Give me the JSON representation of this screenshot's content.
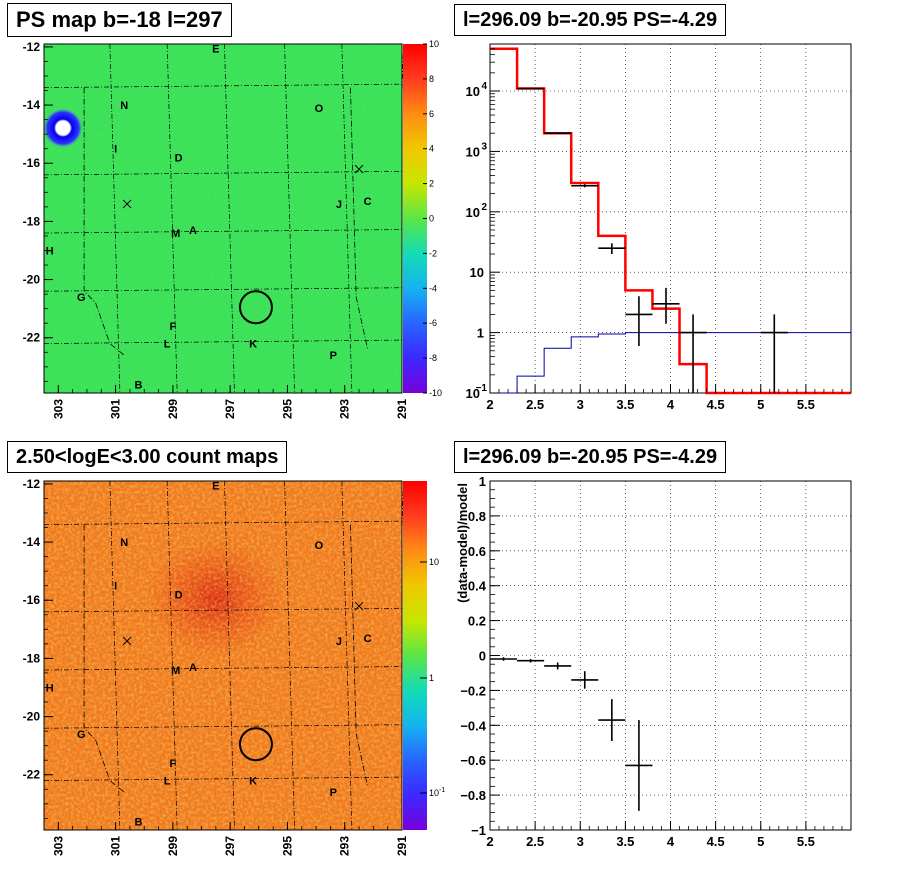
{
  "chart_data": [
    {
      "type": "heatmap",
      "title": "PS map b=-18 l=297",
      "x_ticks": [
        "303",
        "301",
        "299",
        "297",
        "295",
        "293",
        "291"
      ],
      "y_ticks": [
        "-12",
        "-14",
        "-16",
        "-18",
        "-20",
        "-22"
      ],
      "xlim": [
        291,
        303.5
      ],
      "ylim": [
        -23.9,
        -11.9
      ],
      "colorbar": {
        "scale": "linear",
        "range": [
          -10,
          10
        ],
        "ticks": [
          "10",
          "8",
          "6",
          "4",
          "2",
          "0",
          "-2",
          "-4",
          "-6",
          "-8",
          "-10"
        ]
      },
      "colors": {
        "background": "#33dd55",
        "hotspot": "#1a1aff",
        "grid": "#000000"
      },
      "source_labels": [
        {
          "text": "E",
          "l": 297.5,
          "b": -12.05
        },
        {
          "text": "N",
          "l": 300.7,
          "b": -14.0
        },
        {
          "text": "O",
          "l": 293.9,
          "b": -14.1
        },
        {
          "text": "I",
          "l": 301.0,
          "b": -15.5
        },
        {
          "text": "D",
          "l": 298.8,
          "b": -15.8
        },
        {
          "text": "J",
          "l": 293.2,
          "b": -17.4
        },
        {
          "text": "C",
          "l": 292.2,
          "b": -17.3
        },
        {
          "text": "M",
          "l": 298.9,
          "b": -18.4
        },
        {
          "text": "A",
          "l": 298.3,
          "b": -18.3
        },
        {
          "text": "H",
          "l": 303.3,
          "b": -19.0
        },
        {
          "text": "G",
          "l": 302.2,
          "b": -20.6
        },
        {
          "text": "F",
          "l": 299.0,
          "b": -21.6
        },
        {
          "text": "L",
          "l": 299.2,
          "b": -22.2
        },
        {
          "text": "K",
          "l": 296.2,
          "b": -22.2
        },
        {
          "text": "P",
          "l": 293.4,
          "b": -22.6
        },
        {
          "text": "B",
          "l": 300.2,
          "b": -23.6
        }
      ],
      "crosses": [
        {
          "l": 300.6,
          "b": -17.4
        },
        {
          "l": 292.5,
          "b": -16.2
        }
      ],
      "circle": {
        "l": 296.1,
        "b": -20.95,
        "r": 0.55
      }
    },
    {
      "type": "line",
      "title": "l=296.09 b=-20.95 PS=-4.29",
      "x_ticks": [
        "2",
        "2.5",
        "3",
        "3.5",
        "4",
        "4.5",
        "5",
        "5.5"
      ],
      "xlim": [
        2,
        6
      ],
      "y_scale": "log",
      "ylim": [
        0.1,
        60000
      ],
      "y_ticks": [
        {
          "value": 0.1,
          "base": "10",
          "exp": "−1"
        },
        {
          "value": 1,
          "base": "1",
          "exp": ""
        },
        {
          "value": 10,
          "base": "10",
          "exp": ""
        },
        {
          "value": 100,
          "base": "10",
          "exp": "2"
        },
        {
          "value": 1000,
          "base": "10",
          "exp": "3"
        },
        {
          "value": 10000,
          "base": "10",
          "exp": "4"
        }
      ],
      "series": [
        {
          "color": "#ff0000",
          "edges": [
            2.0,
            2.3,
            2.6,
            2.9,
            3.2,
            3.5,
            3.8,
            4.1,
            4.4,
            4.7,
            5.0,
            5.3,
            5.6,
            5.9,
            6.0
          ],
          "values": [
            50000,
            11000,
            2000,
            300,
            40,
            5.0,
            2.5,
            0.3,
            0.1,
            0.1,
            0.1,
            0.1,
            0.1,
            0.1
          ]
        },
        {
          "color": "#0000aa",
          "edges": [
            2.0,
            2.3,
            2.6,
            2.9,
            3.2,
            3.5,
            3.8,
            4.1,
            4.4,
            4.7,
            5.0,
            5.3,
            5.6,
            6.0
          ],
          "values": [
            0.1,
            0.19,
            0.55,
            0.85,
            0.95,
            1.0,
            1.0,
            1.0,
            1.0,
            1.0,
            1.0,
            1.0,
            1.0
          ]
        },
        {
          "color": "#000000",
          "points": [
            {
              "x": 2.45,
              "y": 11000,
              "xerr": 0.15,
              "ylo": 10800,
              "yhi": 11200
            },
            {
              "x": 2.75,
              "y": 2000,
              "xerr": 0.15,
              "ylo": 1950,
              "yhi": 2050
            },
            {
              "x": 3.05,
              "y": 270,
              "xerr": 0.15,
              "ylo": 255,
              "yhi": 285
            },
            {
              "x": 3.35,
              "y": 25,
              "xerr": 0.15,
              "ylo": 20,
              "yhi": 30
            },
            {
              "x": 3.65,
              "y": 2.0,
              "xerr": 0.15,
              "ylo": 0.6,
              "yhi": 4.0
            },
            {
              "x": 3.95,
              "y": 3.0,
              "xerr": 0.15,
              "ylo": 1.4,
              "yhi": 5.5
            },
            {
              "x": 4.25,
              "y": 1.0,
              "xerr": 0.15,
              "ylo": 0.1,
              "yhi": 2.0
            },
            {
              "x": 5.15,
              "y": 1.0,
              "xerr": 0.15,
              "ylo": 0.1,
              "yhi": 2.0
            }
          ]
        }
      ]
    },
    {
      "type": "heatmap",
      "title": "2.50<logE<3.00 count maps",
      "x_ticks": [
        "303",
        "301",
        "299",
        "297",
        "295",
        "293",
        "291"
      ],
      "y_ticks": [
        "-12",
        "-14",
        "-16",
        "-18",
        "-20",
        "-22"
      ],
      "colorbar": {
        "scale": "log",
        "ticks": [
          "10",
          "1"
        ],
        "tick_min": {
          "base": "10",
          "exp": "-1"
        }
      },
      "colors": {
        "background": "#f07a20",
        "hot": "#e83018",
        "cool": "#e8e838"
      }
    },
    {
      "type": "scatter",
      "title": "l=296.09 b=-20.95 PS=-4.29",
      "ylabel": "(data-model)/model",
      "x_ticks": [
        "2",
        "2.5",
        "3",
        "3.5",
        "4",
        "4.5",
        "5",
        "5.5"
      ],
      "xlim": [
        2,
        6
      ],
      "ylim": [
        -1,
        1
      ],
      "y_ticks": [
        "1",
        "0.8",
        "0.6",
        "0.4",
        "0.2",
        "0",
        "−0.2",
        "−0.4",
        "−0.6",
        "−0.8",
        "−1"
      ],
      "points": [
        {
          "x": 2.15,
          "y": -0.02,
          "xerr": 0.15,
          "yerr": 0.01
        },
        {
          "x": 2.45,
          "y": -0.03,
          "xerr": 0.15,
          "yerr": 0.01
        },
        {
          "x": 2.75,
          "y": -0.06,
          "xerr": 0.15,
          "yerr": 0.02
        },
        {
          "x": 3.05,
          "y": -0.14,
          "xerr": 0.15,
          "yerr": 0.05
        },
        {
          "x": 3.35,
          "y": -0.37,
          "xerr": 0.15,
          "yerr": 0.12
        },
        {
          "x": 3.65,
          "y": -0.63,
          "xerr": 0.15,
          "yerr": 0.26
        }
      ]
    }
  ]
}
